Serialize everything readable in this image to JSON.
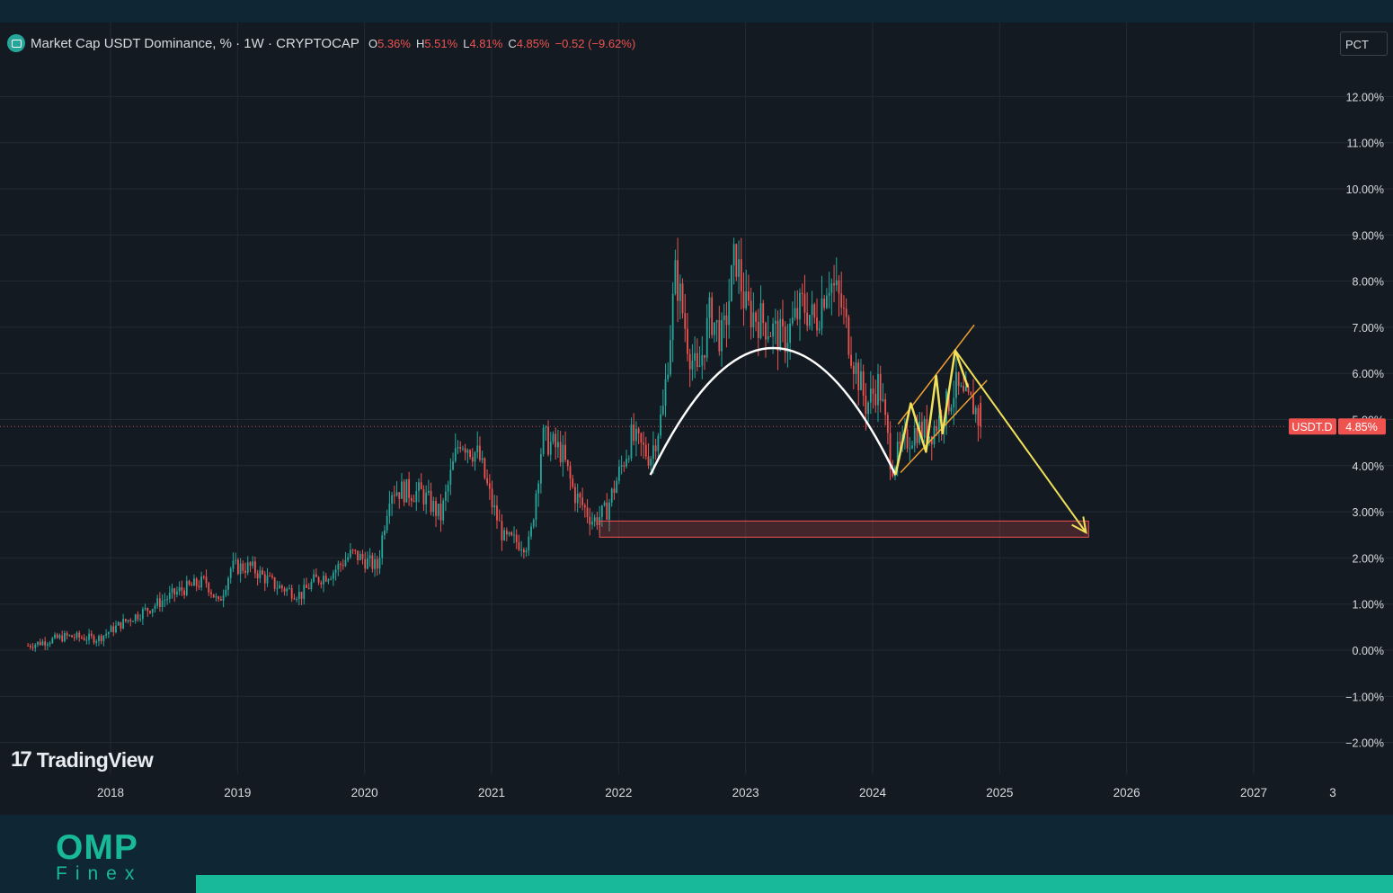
{
  "header": {
    "title": "Market Cap USDT Dominance, % · 1W · CRYPTOCAP",
    "o_label": "O",
    "o_value": "5.36%",
    "h_label": "H",
    "h_value": "5.51%",
    "l_label": "L",
    "l_value": "4.81%",
    "c_label": "C",
    "c_value": "4.85%",
    "change": "−0.52 (−9.62%)"
  },
  "scale_button": "PCT",
  "watermark": "TradingView",
  "brand": {
    "name": "OMP",
    "sub": "Finex",
    "accent": "#18b99a"
  },
  "price_badge": {
    "symbol": "USDT.D",
    "value": "4.85%"
  },
  "colors": {
    "up": "#26a69a",
    "down": "#ef5350",
    "background": "#141a22",
    "grid": "#222a35",
    "arc": "#ffffff",
    "annotation": "#f0e05a",
    "channel": "#f0a030",
    "zone": "#ef5350"
  },
  "chart_data": {
    "type": "candlestick",
    "title": "Market Cap USDT Dominance, % · 1W · CRYPTOCAP",
    "y_ticks": [
      "12.00%",
      "11.00%",
      "10.00%",
      "9.00%",
      "8.00%",
      "7.00%",
      "6.00%",
      "5.00%",
      "4.00%",
      "3.00%",
      "2.00%",
      "1.00%",
      "0.00%",
      "−1.00%",
      "−2.00%"
    ],
    "x_ticks": [
      "2018",
      "2019",
      "2020",
      "2021",
      "2022",
      "2023",
      "2024",
      "2025",
      "2026",
      "2027",
      "3"
    ],
    "ylim": [
      -2.4,
      12.8
    ],
    "last_close": 4.85,
    "ohlc_latest": {
      "open": 5.36,
      "high": 5.51,
      "low": 4.81,
      "close": 4.85
    },
    "grid": true,
    "price_path": [
      {
        "t": 2017.35,
        "v": 0.1
      },
      {
        "t": 2017.65,
        "v": 0.3
      },
      {
        "t": 2017.9,
        "v": 0.25
      },
      {
        "t": 2018.1,
        "v": 0.6
      },
      {
        "t": 2018.3,
        "v": 0.9
      },
      {
        "t": 2018.55,
        "v": 1.3
      },
      {
        "t": 2018.75,
        "v": 1.5
      },
      {
        "t": 2018.85,
        "v": 1.0
      },
      {
        "t": 2018.95,
        "v": 1.8
      },
      {
        "t": 2019.1,
        "v": 1.8
      },
      {
        "t": 2019.3,
        "v": 1.4
      },
      {
        "t": 2019.5,
        "v": 1.2
      },
      {
        "t": 2019.6,
        "v": 1.5
      },
      {
        "t": 2019.75,
        "v": 1.7
      },
      {
        "t": 2019.9,
        "v": 2.1
      },
      {
        "t": 2020.1,
        "v": 1.8
      },
      {
        "t": 2020.2,
        "v": 3.5
      },
      {
        "t": 2020.45,
        "v": 3.4
      },
      {
        "t": 2020.6,
        "v": 2.9
      },
      {
        "t": 2020.75,
        "v": 4.6
      },
      {
        "t": 2020.9,
        "v": 4.2
      },
      {
        "t": 2021.0,
        "v": 3.2
      },
      {
        "t": 2021.1,
        "v": 2.4
      },
      {
        "t": 2021.3,
        "v": 2.3
      },
      {
        "t": 2021.4,
        "v": 4.6
      },
      {
        "t": 2021.55,
        "v": 4.3
      },
      {
        "t": 2021.65,
        "v": 3.4
      },
      {
        "t": 2021.8,
        "v": 2.8
      },
      {
        "t": 2021.9,
        "v": 3.0
      },
      {
        "t": 2022.0,
        "v": 3.8
      },
      {
        "t": 2022.1,
        "v": 4.6
      },
      {
        "t": 2022.25,
        "v": 4.2
      },
      {
        "t": 2022.35,
        "v": 5.2
      },
      {
        "t": 2022.45,
        "v": 8.2
      },
      {
        "t": 2022.55,
        "v": 6.6
      },
      {
        "t": 2022.62,
        "v": 5.9
      },
      {
        "t": 2022.72,
        "v": 7.3
      },
      {
        "t": 2022.82,
        "v": 6.7
      },
      {
        "t": 2022.92,
        "v": 8.6
      },
      {
        "t": 2023.0,
        "v": 7.4
      },
      {
        "t": 2023.15,
        "v": 7.1
      },
      {
        "t": 2023.3,
        "v": 6.7
      },
      {
        "t": 2023.45,
        "v": 7.5
      },
      {
        "t": 2023.55,
        "v": 7.1
      },
      {
        "t": 2023.65,
        "v": 8.1
      },
      {
        "t": 2023.75,
        "v": 7.5
      },
      {
        "t": 2023.85,
        "v": 6.3
      },
      {
        "t": 2023.95,
        "v": 5.3
      },
      {
        "t": 2024.05,
        "v": 5.8
      },
      {
        "t": 2024.15,
        "v": 4.0
      },
      {
        "t": 2024.25,
        "v": 4.5
      },
      {
        "t": 2024.35,
        "v": 4.8
      },
      {
        "t": 2024.45,
        "v": 4.7
      },
      {
        "t": 2024.55,
        "v": 5.1
      },
      {
        "t": 2024.65,
        "v": 5.7
      },
      {
        "t": 2024.72,
        "v": 5.4
      },
      {
        "t": 2024.8,
        "v": 5.3
      },
      {
        "t": 2024.85,
        "v": 4.85
      }
    ],
    "x_year_anchors": {
      "2018": 123,
      "2027": 1395
    },
    "annotations": {
      "arc": {
        "start": [
          2022.25,
          3.8
        ],
        "peak": [
          2023.22,
          6.55
        ],
        "end": [
          2024.18,
          3.8
        ]
      },
      "channel": {
        "upper": [
          [
            2024.2,
            4.9
          ],
          [
            2024.8,
            7.05
          ]
        ],
        "lower": [
          [
            2024.22,
            3.85
          ],
          [
            2024.9,
            5.85
          ]
        ],
        "zigzag": [
          [
            2024.18,
            3.8
          ],
          [
            2024.3,
            5.35
          ],
          [
            2024.42,
            4.3
          ],
          [
            2024.5,
            5.95
          ],
          [
            2024.55,
            4.7
          ],
          [
            2024.65,
            6.5
          ],
          [
            2024.75,
            5.7
          ]
        ]
      },
      "arrow": {
        "from": [
          2024.65,
          6.5
        ],
        "to": [
          2025.68,
          2.55
        ]
      },
      "support_zone": {
        "x0": 2021.85,
        "x1": 2025.7,
        "y0": 2.45,
        "y1": 2.8
      }
    }
  }
}
